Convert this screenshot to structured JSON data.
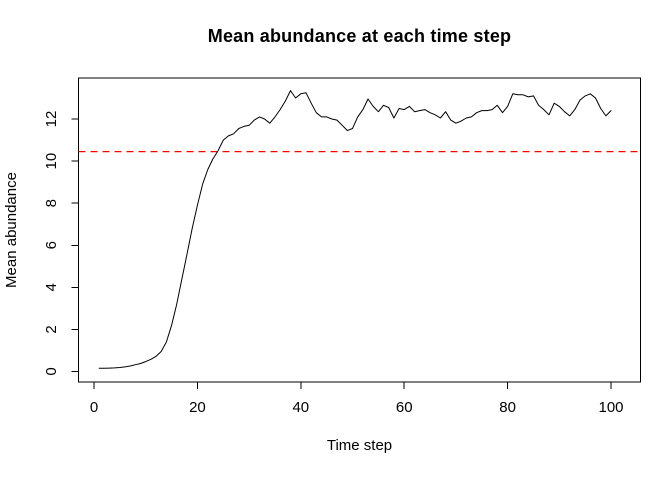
{
  "figure": {
    "background": "#ffffff"
  },
  "chart_data": {
    "type": "line",
    "title": "Mean abundance at each time step",
    "xlabel": "Time step",
    "ylabel": "Mean abundance",
    "xlim": [
      -3.0,
      105.7
    ],
    "ylim": [
      -0.5,
      13.95
    ],
    "x_ticks": [
      0,
      20,
      40,
      60,
      80,
      100
    ],
    "y_ticks": [
      0,
      2,
      4,
      6,
      8,
      10,
      12
    ],
    "grid": false,
    "box": true,
    "legend": "none",
    "axis_color": "#000000",
    "text_color": "#000000",
    "series": [
      {
        "name": "mean-abundance",
        "color": "#000000",
        "line_style": "solid",
        "x_start": 1,
        "x_step": 1,
        "y": [
          0.15,
          0.15,
          0.16,
          0.17,
          0.19,
          0.22,
          0.26,
          0.32,
          0.38,
          0.47,
          0.58,
          0.72,
          0.95,
          1.4,
          2.2,
          3.2,
          4.4,
          5.6,
          6.8,
          7.9,
          8.9,
          9.6,
          10.1,
          10.5,
          11.0,
          11.2,
          11.3,
          11.55,
          11.65,
          11.7,
          11.95,
          12.1,
          12.0,
          11.8,
          12.1,
          12.45,
          12.85,
          13.35,
          13.0,
          13.2,
          13.25,
          12.75,
          12.3,
          12.1,
          12.1,
          12.0,
          11.95,
          11.7,
          11.45,
          11.55,
          12.1,
          12.45,
          12.95,
          12.6,
          12.35,
          12.65,
          12.55,
          12.05,
          12.5,
          12.45,
          12.6,
          12.35,
          12.4,
          12.45,
          12.3,
          12.2,
          12.05,
          12.35,
          11.95,
          11.8,
          11.9,
          12.05,
          12.1,
          12.3,
          12.4,
          12.4,
          12.45,
          12.65,
          12.3,
          12.6,
          13.2,
          13.15,
          13.15,
          13.05,
          13.1,
          12.65,
          12.45,
          12.2,
          12.75,
          12.6,
          12.35,
          12.15,
          12.45,
          12.9,
          13.1,
          13.2,
          13.0,
          12.5,
          12.15,
          12.4
        ]
      }
    ],
    "reference_line": {
      "y": 10.45,
      "color": "#ff0000",
      "line_style": "dashed"
    }
  }
}
